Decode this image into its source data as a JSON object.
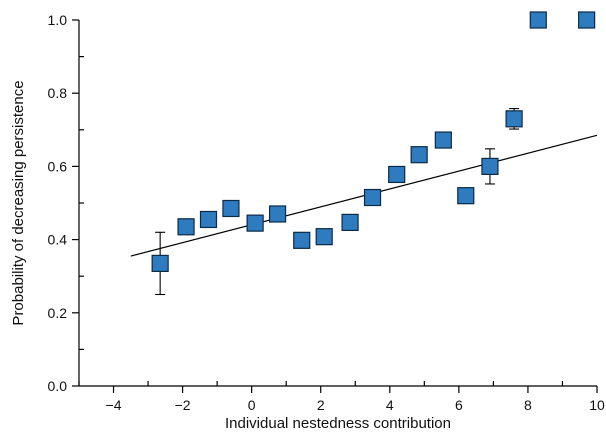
{
  "chart_data": {
    "type": "scatter",
    "title": "",
    "xlabel": "Individual nestedness contribution",
    "ylabel": "Probability of decreasing persistence",
    "xlim": [
      -5,
      10
    ],
    "ylim": [
      0,
      1
    ],
    "x_ticks": [
      -4,
      -2,
      0,
      2,
      4,
      6,
      8,
      10
    ],
    "x_tick_labels": [
      "−4",
      "−2",
      "0",
      "2",
      "4",
      "6",
      "8",
      "10"
    ],
    "y_ticks": [
      0,
      0.2,
      0.4,
      0.6,
      0.8,
      1.0
    ],
    "y_tick_labels": [
      "0.0",
      "0.2",
      "0.4",
      "0.6",
      "0.8",
      "1.0"
    ],
    "grid": false,
    "marker_color": "#2f7bbf",
    "points": [
      {
        "x": -2.65,
        "y": 0.335,
        "err_low": 0.25,
        "err_high": 0.42
      },
      {
        "x": -1.9,
        "y": 0.435
      },
      {
        "x": -1.25,
        "y": 0.455
      },
      {
        "x": -0.6,
        "y": 0.485
      },
      {
        "x": 0.1,
        "y": 0.445
      },
      {
        "x": 0.75,
        "y": 0.47
      },
      {
        "x": 1.45,
        "y": 0.398
      },
      {
        "x": 2.1,
        "y": 0.408
      },
      {
        "x": 2.85,
        "y": 0.447
      },
      {
        "x": 3.5,
        "y": 0.515
      },
      {
        "x": 4.2,
        "y": 0.578
      },
      {
        "x": 4.85,
        "y": 0.632
      },
      {
        "x": 5.55,
        "y": 0.672
      },
      {
        "x": 6.2,
        "y": 0.52,
        "err_low": 0.507,
        "err_high": 0.532
      },
      {
        "x": 6.9,
        "y": 0.6,
        "err_low": 0.552,
        "err_high": 0.648
      },
      {
        "x": 7.6,
        "y": 0.73,
        "err_low": 0.702,
        "err_high": 0.758
      },
      {
        "x": 8.3,
        "y": 1.0
      },
      {
        "x": 9.7,
        "y": 1.0
      }
    ],
    "trendline": {
      "x": [
        -3.5,
        10
      ],
      "y": [
        0.355,
        0.685
      ]
    }
  }
}
